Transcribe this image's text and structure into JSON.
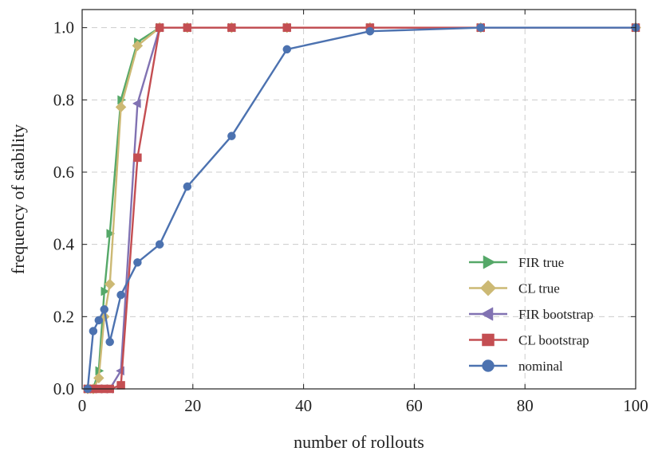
{
  "chart_data": {
    "type": "line",
    "title": "",
    "xlabel": "number of rollouts",
    "ylabel": "frequency of stability",
    "xlim": [
      0,
      100
    ],
    "ylim": [
      0,
      1.05
    ],
    "x_ticks": [
      "0",
      "20",
      "40",
      "60",
      "80",
      "100"
    ],
    "y_ticks": [
      "0.0",
      "0.2",
      "0.4",
      "0.6",
      "0.8",
      "1.0"
    ],
    "grid": true,
    "legend_position": "lower-right",
    "series": [
      {
        "name": "FIR true",
        "color": "#55a868",
        "marker": "triangle-right",
        "x": [
          1,
          2,
          3,
          4,
          5,
          7,
          10,
          14,
          19,
          27,
          37,
          52,
          72,
          100
        ],
        "y": [
          0,
          0,
          0.05,
          0.27,
          0.43,
          0.8,
          0.96,
          1.0,
          1.0,
          1.0,
          1.0,
          1.0,
          1.0,
          1.0
        ]
      },
      {
        "name": "CL true",
        "color": "#ccb974",
        "marker": "diamond",
        "x": [
          1,
          2,
          3,
          4,
          5,
          7,
          10,
          14,
          19,
          27,
          37,
          52,
          72,
          100
        ],
        "y": [
          0,
          0,
          0.03,
          0.2,
          0.29,
          0.78,
          0.95,
          1.0,
          1.0,
          1.0,
          1.0,
          1.0,
          1.0,
          1.0
        ]
      },
      {
        "name": "FIR bootstrap",
        "color": "#8172b2",
        "marker": "triangle-left",
        "x": [
          1,
          2,
          3,
          4,
          5,
          7,
          10,
          14,
          19,
          27,
          37,
          52,
          72,
          100
        ],
        "y": [
          0,
          0,
          0,
          0,
          0,
          0.05,
          0.79,
          1.0,
          1.0,
          1.0,
          1.0,
          1.0,
          1.0,
          1.0
        ]
      },
      {
        "name": "CL bootstrap",
        "color": "#c44e52",
        "marker": "square",
        "x": [
          1,
          2,
          3,
          4,
          5,
          7,
          10,
          14,
          19,
          27,
          37,
          52,
          72,
          100
        ],
        "y": [
          0,
          0,
          0,
          0,
          0,
          0.01,
          0.64,
          1.0,
          1.0,
          1.0,
          1.0,
          1.0,
          1.0,
          1.0
        ]
      },
      {
        "name": "nominal",
        "color": "#4c72b0",
        "marker": "circle",
        "x": [
          1,
          2,
          3,
          4,
          5,
          7,
          10,
          14,
          19,
          27,
          37,
          52,
          72,
          100
        ],
        "y": [
          0,
          0.16,
          0.19,
          0.22,
          0.13,
          0.26,
          0.35,
          0.4,
          0.56,
          0.7,
          0.94,
          0.99,
          1.0,
          1.0
        ]
      }
    ]
  }
}
